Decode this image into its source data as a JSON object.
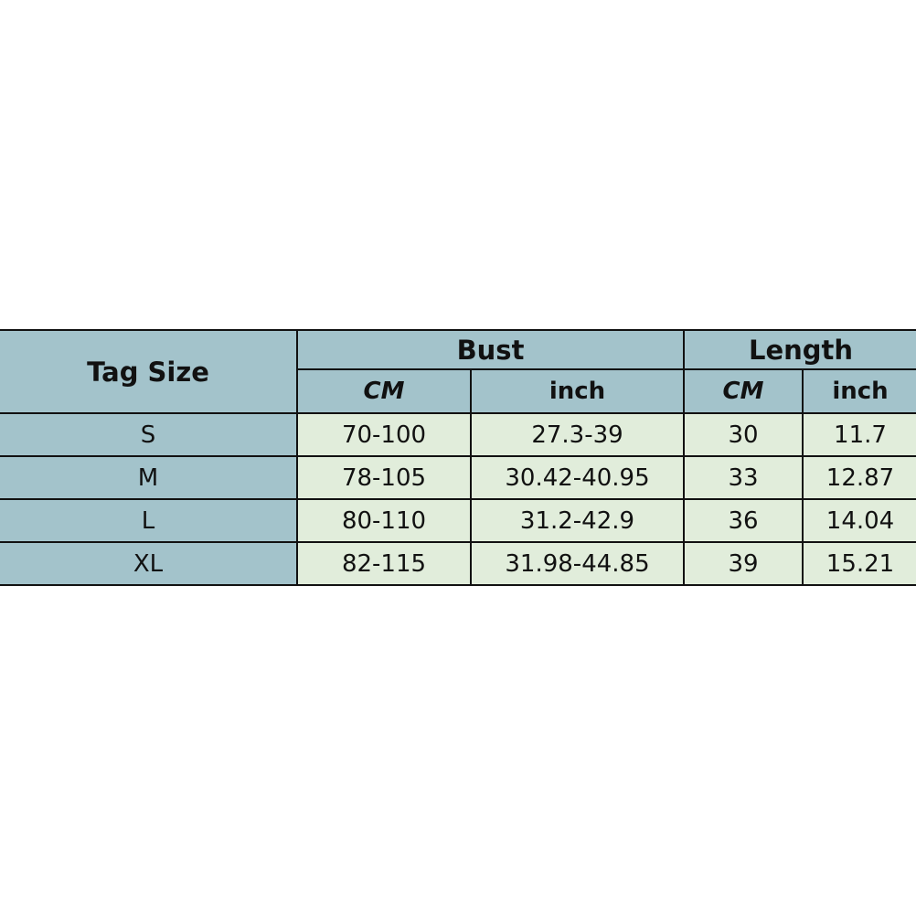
{
  "table": {
    "tag_size_header": "Tag Size",
    "groups": [
      "Bust",
      "Length"
    ],
    "subheaders": [
      "CM",
      "inch",
      "CM",
      "inch"
    ],
    "rows": [
      {
        "size": "S",
        "bust_cm": "70-100",
        "bust_inch": "27.3-39",
        "length_cm": "30",
        "length_inch": "11.7"
      },
      {
        "size": "M",
        "bust_cm": "78-105",
        "bust_inch": "30.42-40.95",
        "length_cm": "33",
        "length_inch": "12.87"
      },
      {
        "size": "L",
        "bust_cm": "80-110",
        "bust_inch": "31.2-42.9",
        "length_cm": "36",
        "length_inch": "14.04"
      },
      {
        "size": "XL",
        "bust_cm": "82-115",
        "bust_inch": "31.98-44.85",
        "length_cm": "39",
        "length_inch": "15.21"
      }
    ]
  },
  "colors": {
    "header": "#a3c3cb",
    "cell": "#e1eddb",
    "border": "#111111"
  }
}
